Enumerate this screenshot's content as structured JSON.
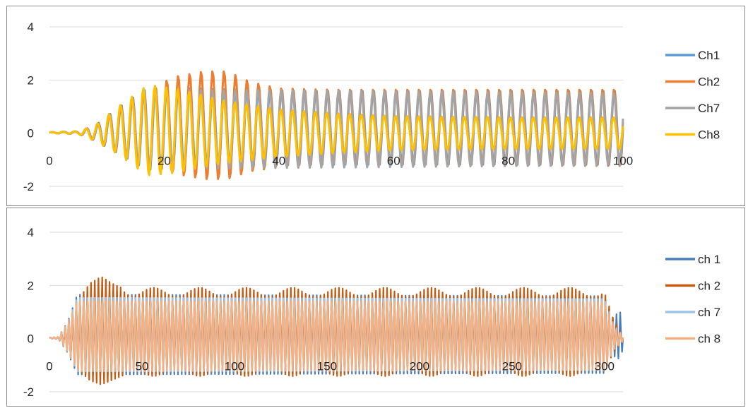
{
  "chart_data": [
    {
      "type": "line",
      "title": "",
      "xlabel": "",
      "ylabel": "",
      "xlim": [
        0,
        100
      ],
      "ylim": [
        -2,
        4
      ],
      "x_ticks": [
        "0",
        "20",
        "40",
        "60",
        "80",
        "100"
      ],
      "y_ticks": [
        "4",
        "2",
        "0",
        "-2"
      ],
      "grid": "horizontal",
      "legend_position": "right",
      "x_sample_step": 0.2,
      "series": [
        {
          "name": "Ch1",
          "color": "#5b9bd5",
          "description": "oscillation ~0.5 cycles/unit, near 0 until x≈5, grows to amplitude ~1.6 by x≈17, then ~1.5",
          "envelope_x": [
            0,
            5,
            8,
            12,
            17,
            25,
            35,
            45,
            100
          ],
          "envelope_amp": [
            0.02,
            0.05,
            0.3,
            0.9,
            1.6,
            1.55,
            1.5,
            1.45,
            1.45
          ],
          "envelope_offset": [
            0.02,
            0.02,
            0.0,
            0.1,
            0.15,
            0.2,
            0.2,
            0.2,
            0.2
          ]
        },
        {
          "name": "Ch2",
          "color": "#ed7d31",
          "description": "same frequency, grows to peak amplitude ~2.05 near x≈30, settles to ~1.45",
          "envelope_x": [
            0,
            5,
            8,
            12,
            17,
            22,
            27,
            31,
            35,
            40,
            50,
            100
          ],
          "envelope_amp": [
            0.02,
            0.05,
            0.3,
            0.9,
            1.45,
            1.85,
            2.05,
            2.05,
            1.7,
            1.5,
            1.45,
            1.45
          ],
          "envelope_offset": [
            0.02,
            0.02,
            0.0,
            0.1,
            0.2,
            0.3,
            0.3,
            0.3,
            0.25,
            0.2,
            0.2,
            0.2
          ]
        },
        {
          "name": "Ch7",
          "color": "#a5a5a5",
          "description": "same frequency, amplitude ~1.5 after x≈17",
          "envelope_x": [
            0,
            5,
            8,
            12,
            17,
            100
          ],
          "envelope_amp": [
            0.02,
            0.05,
            0.3,
            0.9,
            1.5,
            1.35
          ],
          "envelope_offset": [
            0.02,
            0.02,
            0.0,
            0.1,
            0.15,
            0.15
          ]
        },
        {
          "name": "Ch8",
          "color": "#ffc000",
          "description": "same frequency, peaks ~1.7 at x≈17, then decays to ~0.6",
          "envelope_x": [
            0,
            5,
            8,
            12,
            17,
            22,
            30,
            40,
            50,
            60,
            80,
            100
          ],
          "envelope_amp": [
            0.02,
            0.05,
            0.3,
            0.9,
            1.7,
            1.6,
            1.2,
            0.9,
            0.75,
            0.65,
            0.6,
            0.6
          ],
          "envelope_offset": [
            0.02,
            0.02,
            0.0,
            0.1,
            0.1,
            0.1,
            0.05,
            0.0,
            0.0,
            0.0,
            0.0,
            0.0
          ]
        }
      ]
    },
    {
      "type": "line",
      "title": "",
      "xlabel": "",
      "ylabel": "",
      "xlim": [
        0,
        310
      ],
      "ylim": [
        -2,
        4
      ],
      "x_ticks": [
        "0",
        "50",
        "100",
        "150",
        "200",
        "250",
        "300"
      ],
      "y_ticks": [
        "4",
        "2",
        "0",
        "-2"
      ],
      "grid": "horizontal",
      "legend_position": "right",
      "x_sample_step": 0.5,
      "series": [
        {
          "name": "ch 1",
          "color": "#4a7ebb",
          "description": "dense oscillation, amplitude ~1.5 from x≈15 to x≈300, then brief spike to ~0.9 near x≈308 and ends ~310",
          "envelope_x": [
            0,
            5,
            10,
            15,
            300,
            303,
            306,
            309,
            310
          ],
          "envelope_amp": [
            0.02,
            0.05,
            0.6,
            1.5,
            1.45,
            0.6,
            0.8,
            0.9,
            0.2
          ],
          "envelope_offset": [
            0.02,
            0.02,
            0.05,
            0.15,
            0.15,
            0.05,
            0.1,
            0.1,
            0.0
          ]
        },
        {
          "name": "ch 2",
          "color": "#c55a11",
          "description": "dense oscillation, peak ~2.05 near x≈30, then ~1.5 with slow beating (period ~25), collapses after x≈300",
          "envelope_x": [
            0,
            5,
            10,
            15,
            22,
            28,
            35,
            45,
            300,
            305,
            310
          ],
          "envelope_amp": [
            0.02,
            0.05,
            0.6,
            1.3,
            1.85,
            2.05,
            1.8,
            1.5,
            1.5,
            0.6,
            0.1
          ],
          "envelope_offset": [
            0.02,
            0.02,
            0.05,
            0.15,
            0.25,
            0.3,
            0.25,
            0.25,
            0.25,
            0.1,
            0.0
          ],
          "beat_period": 25,
          "beat_amp": 0.18
        },
        {
          "name": "ch 7",
          "color": "#9dc3e6",
          "description": "dense oscillation, amplitude ~1.4 from x≈15 to x≈300",
          "envelope_x": [
            0,
            5,
            10,
            15,
            300,
            305,
            310
          ],
          "envelope_amp": [
            0.02,
            0.05,
            0.6,
            1.45,
            1.4,
            0.5,
            0.1
          ],
          "envelope_offset": [
            0.02,
            0.02,
            0.05,
            0.15,
            0.15,
            0.05,
            0.0
          ]
        },
        {
          "name": "ch 8",
          "color": "#f4b183",
          "description": "dense oscillation, amplitude ~1.45 from x≈15 to x≈300",
          "envelope_x": [
            0,
            5,
            10,
            15,
            300,
            305,
            310
          ],
          "envelope_amp": [
            0.02,
            0.05,
            0.6,
            1.45,
            1.42,
            0.5,
            0.1
          ],
          "envelope_offset": [
            0.02,
            0.02,
            0.05,
            0.1,
            0.1,
            0.05,
            0.0
          ]
        }
      ]
    }
  ]
}
